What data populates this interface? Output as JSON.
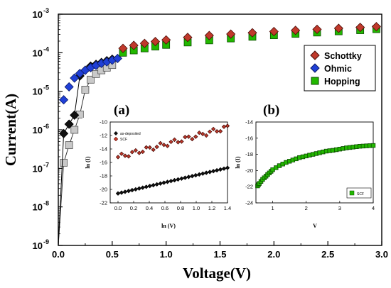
{
  "colors": {
    "schottky": "#c0392b",
    "schottky_edge": "#4a0d08",
    "ohmic": "#1f3fd6",
    "ohmic_edge": "#0a1a66",
    "hopping": "#22b800",
    "hopping_edge": "#0b4a00",
    "black_series": "#111111",
    "grey_series": "#c9c9c9",
    "axis": "#000000"
  },
  "chart_data": [
    {
      "id": "main",
      "type": "line",
      "xlabel": "Voltage(V)",
      "ylabel": "Current(A)",
      "xlim": [
        0,
        3.0
      ],
      "ylim_exp": [
        -9,
        -3
      ],
      "log_y": true,
      "x_ticks": [
        "0.0",
        "0.5",
        "1.0",
        "1.5",
        "2.0",
        "2.5",
        "3.0"
      ],
      "y_ticks": [
        {
          "base": "10",
          "exp": "-9"
        },
        {
          "base": "10",
          "exp": "-8"
        },
        {
          "base": "10",
          "exp": "-7"
        },
        {
          "base": "10",
          "exp": "-6"
        },
        {
          "base": "10",
          "exp": "-5"
        },
        {
          "base": "10",
          "exp": "-4"
        },
        {
          "base": "10",
          "exp": "-3"
        }
      ],
      "legend_position": "top-right",
      "panel_labels": [
        "(a)",
        "(b)"
      ],
      "series": [
        {
          "name": "Schottky",
          "marker": "diamond",
          "color_key": "schottky",
          "x": [
            0.6,
            0.7,
            0.8,
            0.9,
            1.0,
            1.2,
            1.4,
            1.6,
            1.8,
            2.0,
            2.2,
            2.4,
            2.6,
            2.8,
            2.95
          ],
          "y": [
            0.00013,
            0.000155,
            0.000175,
            0.000195,
            0.000215,
            0.00025,
            0.00028,
            0.000305,
            0.00033,
            0.000355,
            0.00038,
            0.000405,
            0.00043,
            0.000455,
            0.000475
          ]
        },
        {
          "name": "Ohmic",
          "marker": "diamond",
          "color_key": "ohmic",
          "x": [
            0.05,
            0.1,
            0.15,
            0.2,
            0.25,
            0.3,
            0.35,
            0.4,
            0.45,
            0.5,
            0.55
          ],
          "y": [
            6e-06,
            1.3e-05,
            2.2e-05,
            2.9e-05,
            3.5e-05,
            4.1e-05,
            4.7e-05,
            5.3e-05,
            5.8e-05,
            6.4e-05,
            7.1e-05
          ]
        },
        {
          "name": "Hopping",
          "marker": "square",
          "color_key": "hopping",
          "x": [
            0.6,
            0.7,
            0.8,
            0.9,
            1.0,
            1.2,
            1.4,
            1.6,
            1.8,
            2.0,
            2.2,
            2.4,
            2.6,
            2.8,
            2.95
          ],
          "y": [
            0.0001,
            0.000115,
            0.00013,
            0.000145,
            0.00016,
            0.000185,
            0.00021,
            0.000235,
            0.00026,
            0.000285,
            0.00031,
            0.000335,
            0.00036,
            0.000385,
            0.00041
          ]
        },
        {
          "name": "",
          "marker": "diamond",
          "color_key": "black_series",
          "x": [
            0.0,
            0.05,
            0.1,
            0.15,
            0.2,
            0.25,
            0.3,
            0.35,
            0.4,
            0.45,
            0.5
          ],
          "y": [
            1e-09,
            8e-07,
            1.4e-06,
            2.4e-06,
            2.5e-05,
            3.5e-05,
            4.5e-05,
            5e-05,
            5.6e-05,
            6.2e-05,
            6.8e-05
          ]
        },
        {
          "name": "",
          "marker": "square",
          "color_key": "grey_series",
          "x": [
            0.0,
            0.05,
            0.1,
            0.15,
            0.2,
            0.25,
            0.3,
            0.35,
            0.4,
            0.45,
            0.5
          ],
          "y": [
            1e-09,
            1.4e-07,
            4e-07,
            1e-06,
            2.5e-06,
            1.1e-05,
            2e-05,
            2.8e-05,
            3.5e-05,
            4.1e-05,
            4.8e-05
          ]
        }
      ]
    },
    {
      "id": "inset_a",
      "type": "scatter",
      "xlabel": "ln (V)",
      "ylabel": "ln (I)",
      "xlim": [
        -0.1,
        1.4
      ],
      "ylim": [
        -22,
        -10
      ],
      "x_ticks": [
        "0.0",
        "0.2",
        "0.4",
        "0.6",
        "0.8",
        "1.0",
        "1.2",
        "1.4"
      ],
      "y_ticks": [
        "-22",
        "-20",
        "-18",
        "-16",
        "-14",
        "-12",
        "-10"
      ],
      "legend_position": "top-left",
      "series": [
        {
          "name": "as-deposited",
          "marker": "diamond",
          "color_key": "black_series",
          "x": [
            0.0,
            1.4
          ],
          "y": [
            -20.6,
            -16.8
          ],
          "points": 32
        },
        {
          "name": "SCF",
          "marker": "diamond",
          "color_key": "schottky",
          "x": [
            0.0,
            1.4
          ],
          "y": [
            -15.2,
            -10.8
          ],
          "points": 32
        }
      ]
    },
    {
      "id": "inset_b",
      "type": "scatter",
      "xlabel": "V",
      "ylabel": "ln (I)",
      "xlim": [
        0.5,
        4.0
      ],
      "ylim": [
        -24,
        -14
      ],
      "x_ticks": [
        "1",
        "2",
        "3",
        "4"
      ],
      "y_ticks": [
        "-24",
        "-22",
        "-20",
        "-18",
        "-16",
        "-14"
      ],
      "legend_position": "bottom-right",
      "series": [
        {
          "name": "SCF",
          "marker": "square",
          "color_key": "hopping",
          "x": [
            0.55,
            0.6,
            0.7,
            0.8,
            0.9,
            1.0,
            1.2,
            1.4,
            1.6,
            1.8,
            2.0,
            2.2,
            2.4,
            2.6,
            2.8,
            3.0,
            3.2,
            3.4,
            3.6,
            3.8,
            4.0
          ],
          "y": [
            -21.9,
            -21.6,
            -21.1,
            -20.7,
            -20.3,
            -19.9,
            -19.4,
            -19.0,
            -18.7,
            -18.4,
            -18.2,
            -18.0,
            -17.8,
            -17.6,
            -17.5,
            -17.35,
            -17.2,
            -17.1,
            -17.0,
            -16.95,
            -16.9
          ]
        }
      ]
    }
  ]
}
